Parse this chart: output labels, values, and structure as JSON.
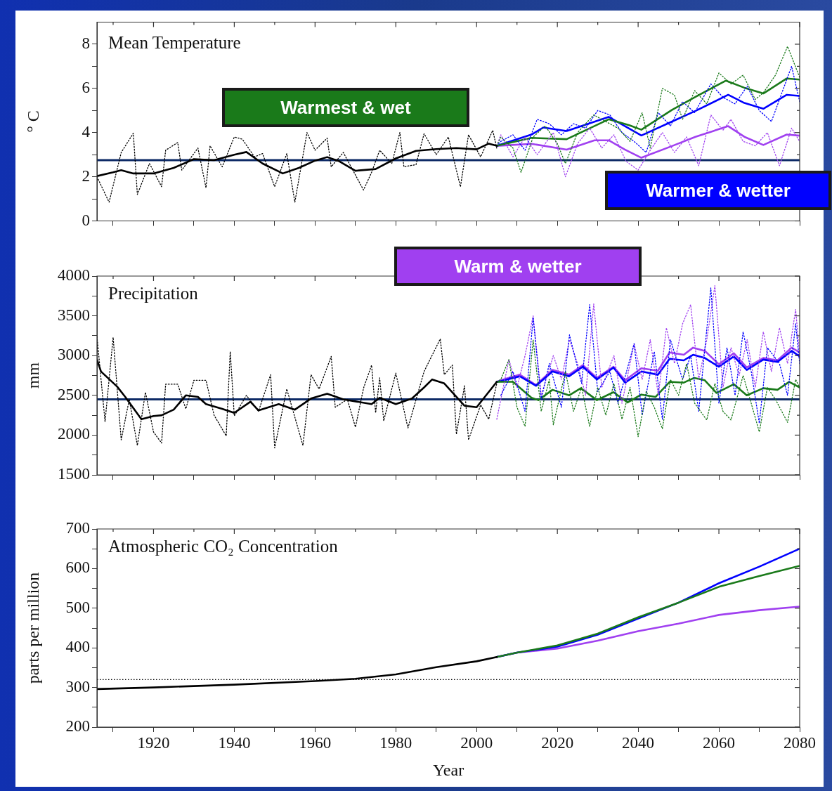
{
  "chart_data": [
    {
      "type": "line",
      "title": "Mean Temperature",
      "ylabel": "° C",
      "xlim": [
        1906,
        2080
      ],
      "xticks": [
        {
          "value": 1910,
          "label": null
        },
        1920,
        {
          "value": 1930,
          "label": null
        },
        1940,
        {
          "value": 1950,
          "label": null
        },
        1960,
        {
          "value": 1970,
          "label": null
        },
        1980,
        {
          "value": 1990,
          "label": null
        },
        2000,
        {
          "value": 2010,
          "label": null
        },
        2020,
        {
          "value": 2030,
          "label": null
        },
        2040,
        {
          "value": 2050,
          "label": null
        },
        2060,
        {
          "value": 2070,
          "label": null
        },
        2080
      ],
      "ylim": [
        0,
        9
      ],
      "yticks": [
        0,
        {
          "value": 1,
          "label": null
        },
        2,
        {
          "value": 3,
          "label": null
        },
        4,
        {
          "value": 5,
          "label": null
        },
        6,
        {
          "value": 7,
          "label": null
        },
        8
      ],
      "tick_labels": "y",
      "marker": "none",
      "ref_lines": [
        {
          "axis": "y",
          "value": 2.75,
          "color": "#0d2a66",
          "line_style": "solid"
        }
      ],
      "series": [
        {
          "color": "#000000",
          "line_style": "dotted",
          "x": [
            1906,
            1909,
            1912,
            1915,
            1916,
            1919,
            1922,
            1923,
            1926,
            1927,
            1931,
            1933,
            1934,
            1937,
            1940,
            1942,
            1945,
            1947,
            1950,
            1953,
            1955,
            1958,
            1960,
            1963,
            1964,
            1967,
            1972,
            1974,
            1976,
            1979,
            1981,
            1982,
            1985,
            1987,
            1990,
            1993,
            1996,
            1998,
            2001,
            2004,
            2005
          ],
          "values": [
            2.0,
            0.85,
            3.1,
            3.97,
            1.2,
            2.6,
            1.55,
            3.2,
            3.55,
            2.3,
            3.3,
            1.5,
            3.4,
            2.45,
            3.8,
            3.7,
            2.9,
            3.05,
            1.55,
            3.05,
            0.85,
            4.0,
            3.2,
            3.75,
            2.45,
            3.1,
            1.4,
            2.2,
            3.2,
            2.6,
            4.0,
            2.45,
            2.55,
            3.95,
            3.0,
            3.8,
            1.55,
            3.9,
            2.9,
            4.1,
            3.3
          ]
        },
        {
          "color": "#000000",
          "line_style": "solid",
          "x": [
            1906,
            1910,
            1912,
            1915,
            1920,
            1925,
            1930,
            1935,
            1940,
            1943,
            1947,
            1952,
            1956,
            1960,
            1963,
            1966,
            1970,
            1975,
            1980,
            1985,
            1990,
            1995,
            2000,
            2003,
            2005
          ],
          "values": [
            2.03,
            2.2,
            2.3,
            2.15,
            2.15,
            2.4,
            2.8,
            2.75,
            3.0,
            3.12,
            2.6,
            2.15,
            2.4,
            2.73,
            2.89,
            2.7,
            2.27,
            2.35,
            2.83,
            3.17,
            3.25,
            3.3,
            3.24,
            3.5,
            3.4
          ]
        },
        {
          "color": "#1a7a1a",
          "line_style": "dotted",
          "x": [
            2005,
            2006,
            2009,
            2011,
            2014,
            2017,
            2020,
            2022,
            2025,
            2029,
            2032,
            2035,
            2038,
            2041,
            2043,
            2046,
            2049,
            2051,
            2054,
            2057,
            2060,
            2063,
            2066,
            2069,
            2071,
            2074,
            2077,
            2080
          ],
          "values": [
            3.4,
            3.8,
            3.3,
            2.2,
            3.8,
            4.3,
            3.5,
            2.6,
            4.0,
            4.8,
            4.5,
            4.2,
            3.6,
            4.9,
            3.3,
            6.0,
            5.7,
            4.6,
            5.9,
            5.3,
            6.7,
            6.2,
            6.6,
            5.5,
            5.8,
            6.6,
            7.9,
            6.5
          ]
        },
        {
          "color": "#0000ff",
          "line_style": "dotted",
          "x": [
            2005,
            2006,
            2009,
            2012,
            2015,
            2018,
            2021,
            2024,
            2027,
            2030,
            2033,
            2036,
            2039,
            2042,
            2045,
            2048,
            2051,
            2054,
            2058,
            2061,
            2064,
            2067,
            2070,
            2073,
            2076,
            2078,
            2080
          ],
          "values": [
            3.4,
            3.6,
            3.9,
            3.2,
            4.6,
            4.4,
            3.9,
            4.4,
            4.2,
            5.0,
            4.8,
            4.0,
            3.6,
            3.1,
            4.9,
            4.3,
            5.4,
            4.9,
            6.2,
            5.6,
            5.3,
            6.1,
            5.0,
            4.5,
            6.0,
            7.0,
            5.4
          ]
        },
        {
          "color": "#a040f0",
          "line_style": "dotted",
          "x": [
            2005,
            2006,
            2009,
            2012,
            2015,
            2019,
            2022,
            2025,
            2028,
            2031,
            2034,
            2037,
            2040,
            2043,
            2046,
            2049,
            2052,
            2055,
            2058,
            2061,
            2063,
            2066,
            2069,
            2072,
            2075,
            2078,
            2080
          ],
          "values": [
            3.4,
            3.9,
            2.9,
            3.8,
            3.0,
            4.0,
            2.0,
            3.5,
            4.2,
            3.3,
            3.9,
            2.7,
            2.3,
            3.2,
            4.0,
            3.1,
            3.8,
            2.5,
            4.8,
            4.1,
            4.6,
            3.6,
            3.4,
            4.0,
            2.5,
            4.2,
            3.6
          ]
        },
        {
          "name": "Warmest & wet",
          "color": "#1a7a1a",
          "line_style": "solid",
          "x": [
            2005,
            2013.6,
            2022.3,
            2032.7,
            2037.8,
            2040.8,
            2048.4,
            2054.2,
            2061.7,
            2066.3,
            2071,
            2076.8,
            2080
          ],
          "values": [
            3.4,
            3.76,
            3.7,
            4.6,
            4.33,
            4.13,
            5.03,
            5.62,
            6.35,
            6.03,
            5.77,
            6.45,
            6.4
          ]
        },
        {
          "name": "Warmer & wetter",
          "color": "#0000ff",
          "line_style": "solid",
          "x": [
            2005,
            2013.6,
            2016.5,
            2022.3,
            2032.7,
            2040.8,
            2048.4,
            2054.2,
            2062.3,
            2066.3,
            2071,
            2076.8,
            2080
          ],
          "values": [
            3.4,
            3.91,
            4.23,
            4.07,
            4.71,
            3.87,
            4.5,
            4.98,
            5.71,
            5.34,
            5.08,
            5.71,
            5.66
          ]
        },
        {
          "name": "Warm & wetter",
          "color": "#a040f0",
          "line_style": "solid",
          "x": [
            2005,
            2013.6,
            2022.3,
            2029.2,
            2032.7,
            2036.7,
            2040.8,
            2048.4,
            2054.2,
            2062.3,
            2066.3,
            2071,
            2076.8,
            2080
          ],
          "values": [
            3.4,
            3.49,
            3.23,
            3.65,
            3.65,
            3.23,
            2.86,
            3.39,
            3.81,
            4.29,
            3.81,
            3.44,
            3.91,
            3.86
          ]
        }
      ]
    },
    {
      "type": "line",
      "title": "Precipitation",
      "ylabel": "mm",
      "xlim": [
        1906,
        2080
      ],
      "xticks": [
        {
          "value": 1910,
          "label": null
        },
        1920,
        {
          "value": 1930,
          "label": null
        },
        1940,
        {
          "value": 1950,
          "label": null
        },
        1960,
        {
          "value": 1970,
          "label": null
        },
        1980,
        {
          "value": 1990,
          "label": null
        },
        2000,
        {
          "value": 2010,
          "label": null
        },
        2020,
        {
          "value": 2030,
          "label": null
        },
        2040,
        {
          "value": 2050,
          "label": null
        },
        2060,
        {
          "value": 2070,
          "label": null
        },
        2080
      ],
      "ylim": [
        1500,
        4000
      ],
      "yticks": [
        1500,
        {
          "value": 1750,
          "label": null
        },
        2000,
        {
          "value": 2250,
          "label": null
        },
        2500,
        {
          "value": 2750,
          "label": null
        },
        3000,
        {
          "value": 3250,
          "label": null
        },
        3500,
        {
          "value": 3750,
          "label": null
        },
        4000
      ],
      "tick_labels": "y",
      "marker": "none",
      "ref_lines": [
        {
          "axis": "y",
          "value": 2450,
          "color": "#0d2a66",
          "line_style": "solid"
        }
      ],
      "series": [
        {
          "color": "#000000",
          "line_style": "dotted",
          "x": [
            1906,
            1908,
            1910,
            1912,
            1914,
            1916,
            1918,
            1920,
            1922,
            1923,
            1926,
            1928,
            1930,
            1933,
            1935,
            1938,
            1939,
            1940,
            1943,
            1946,
            1949,
            1950,
            1953,
            1957,
            1959,
            1961,
            1964,
            1965,
            1968,
            1970,
            1972,
            1974,
            1975,
            1976,
            1977,
            1980,
            1983,
            1987,
            1991,
            1992,
            1994,
            1995,
            1997,
            1998,
            2001,
            2003,
            2005
          ],
          "values": [
            3240,
            2170,
            3230,
            1940,
            2450,
            1870,
            2540,
            2040,
            1900,
            2640,
            2640,
            2330,
            2690,
            2690,
            2250,
            1990,
            3050,
            2240,
            2500,
            2300,
            2760,
            1840,
            2580,
            1870,
            2760,
            2580,
            2990,
            2350,
            2450,
            2100,
            2590,
            2880,
            2280,
            2720,
            2180,
            2780,
            2090,
            2800,
            3210,
            2760,
            2880,
            2010,
            2620,
            1940,
            2380,
            2200,
            2650
          ]
        },
        {
          "color": "#000000",
          "line_style": "solid",
          "x": [
            1906,
            1907,
            1911,
            1913,
            1917,
            1920,
            1922,
            1925,
            1928,
            1931,
            1933,
            1937,
            1940,
            1944,
            1946,
            1951,
            1955,
            1959,
            1963,
            1967,
            1974,
            1976,
            1980,
            1984,
            1987,
            1989,
            1992,
            1997,
            2000,
            2005
          ],
          "values": [
            2950,
            2800,
            2610,
            2480,
            2200,
            2240,
            2250,
            2320,
            2500,
            2480,
            2390,
            2330,
            2280,
            2420,
            2310,
            2390,
            2320,
            2460,
            2520,
            2450,
            2390,
            2470,
            2390,
            2460,
            2600,
            2700,
            2650,
            2370,
            2350,
            2670
          ]
        },
        {
          "color": "#1a7a1a",
          "line_style": "dotted",
          "x": [
            2005,
            2006,
            2008,
            2010,
            2012,
            2014,
            2016,
            2018,
            2019,
            2022,
            2024,
            2026,
            2028,
            2030,
            2032,
            2034,
            2036,
            2038,
            2040,
            2042,
            2044,
            2046,
            2048,
            2050,
            2052,
            2054,
            2057,
            2059,
            2061,
            2063,
            2066,
            2068,
            2070,
            2072,
            2074,
            2077,
            2079,
            2080
          ],
          "values": [
            2670,
            2700,
            2950,
            2350,
            2110,
            3200,
            2300,
            2700,
            2130,
            2800,
            2300,
            2600,
            2110,
            2600,
            2250,
            2650,
            2200,
            2600,
            1980,
            2550,
            2350,
            2080,
            2700,
            2500,
            2900,
            2400,
            2190,
            2650,
            2300,
            2190,
            2750,
            2400,
            2040,
            2600,
            2450,
            2160,
            2700,
            2600
          ]
        },
        {
          "color": "#0000ff",
          "line_style": "dotted",
          "x": [
            2006,
            2009,
            2012,
            2014,
            2016,
            2018,
            2021,
            2023,
            2026,
            2028,
            2030,
            2033,
            2035,
            2039,
            2041,
            2044,
            2046,
            2048,
            2051,
            2053,
            2055,
            2058,
            2060,
            2062,
            2064,
            2066,
            2068,
            2070,
            2072,
            2075,
            2077,
            2079,
            2080
          ],
          "values": [
            2500,
            2800,
            2300,
            3480,
            2450,
            2900,
            2350,
            3260,
            2650,
            3640,
            2550,
            2800,
            2400,
            3150,
            2250,
            3050,
            2200,
            3200,
            2700,
            3000,
            2300,
            3850,
            2400,
            3100,
            2500,
            3300,
            2800,
            2150,
            3100,
            2900,
            2500,
            3400,
            2900
          ]
        },
        {
          "color": "#a040f0",
          "line_style": "dotted",
          "x": [
            2005,
            2008,
            2010,
            2012,
            2014,
            2016,
            2019,
            2021,
            2023,
            2025,
            2027,
            2029,
            2031,
            2034,
            2036,
            2039,
            2041,
            2043,
            2045,
            2047,
            2049,
            2051,
            2053,
            2055,
            2057,
            2059,
            2061,
            2063,
            2065,
            2067,
            2069,
            2071,
            2073,
            2075,
            2077,
            2079,
            2080
          ],
          "values": [
            2200,
            2950,
            2600,
            3000,
            3500,
            2500,
            3000,
            2700,
            3200,
            2900,
            2500,
            3650,
            2600,
            3000,
            2400,
            3150,
            2700,
            3200,
            2500,
            3350,
            2900,
            3400,
            3640,
            2700,
            3200,
            3880,
            2600,
            3100,
            2750,
            3200,
            2600,
            3300,
            2800,
            3350,
            2900,
            3580,
            3000
          ]
        },
        {
          "color": "#1a7a1a",
          "line_style": "solid",
          "x": [
            2005,
            2009,
            2013.6,
            2015.3,
            2018.8,
            2022.9,
            2025.8,
            2029.8,
            2033.9,
            2037.4,
            2040.8,
            2044.3,
            2047.8,
            2051.3,
            2053.9,
            2056.5,
            2059.4,
            2063.7,
            2066.9,
            2071,
            2074.5,
            2077.4,
            2080
          ],
          "values": [
            2670,
            2670,
            2470,
            2440,
            2570,
            2500,
            2590,
            2440,
            2540,
            2410,
            2510,
            2480,
            2670,
            2660,
            2720,
            2690,
            2530,
            2640,
            2500,
            2590,
            2570,
            2670,
            2600
          ]
        },
        {
          "color": "#0000ff",
          "line_style": "solid",
          "x": [
            2005,
            2006,
            2010.7,
            2014.7,
            2018.8,
            2022.9,
            2026.3,
            2029.8,
            2033.9,
            2036.8,
            2040.8,
            2044.9,
            2047.8,
            2051.3,
            2053.6,
            2056.5,
            2060,
            2063.7,
            2066.9,
            2071,
            2074.5,
            2078,
            2080
          ],
          "values": [
            2670,
            2680,
            2740,
            2620,
            2800,
            2740,
            2860,
            2700,
            2850,
            2660,
            2800,
            2760,
            2960,
            2940,
            3010,
            2970,
            2860,
            2990,
            2820,
            2950,
            2920,
            3060,
            2990
          ]
        },
        {
          "color": "#a040f0",
          "line_style": "solid",
          "x": [
            2005,
            2006,
            2010.7,
            2014.7,
            2018.8,
            2022.9,
            2026.3,
            2029.8,
            2033.9,
            2036.8,
            2040.8,
            2044.9,
            2047.8,
            2051.3,
            2053.6,
            2056.5,
            2060,
            2063.7,
            2066.9,
            2071,
            2074.5,
            2078,
            2080
          ],
          "values": [
            2670,
            2690,
            2760,
            2630,
            2820,
            2760,
            2880,
            2720,
            2860,
            2690,
            2840,
            2810,
            3040,
            3010,
            3100,
            3060,
            2890,
            3030,
            2850,
            2970,
            2940,
            3100,
            3040
          ]
        }
      ]
    },
    {
      "type": "line",
      "title": "Atmospheric CO₂ Concentration",
      "ylabel": "parts per million",
      "xlabel": "Year",
      "xlim": [
        1906,
        2080
      ],
      "xticks": [
        {
          "value": 1910,
          "label": null
        },
        1920,
        {
          "value": 1930,
          "label": null
        },
        1940,
        {
          "value": 1950,
          "label": null
        },
        1960,
        {
          "value": 1970,
          "label": null
        },
        1980,
        {
          "value": 1990,
          "label": null
        },
        2000,
        {
          "value": 2010,
          "label": null
        },
        2020,
        {
          "value": 2030,
          "label": null
        },
        2040,
        {
          "value": 2050,
          "label": null
        },
        2060,
        {
          "value": 2070,
          "label": null
        },
        2080
      ],
      "ylim": [
        200,
        700
      ],
      "yticks": [
        200,
        {
          "value": 250,
          "label": null
        },
        300,
        {
          "value": 350,
          "label": null
        },
        400,
        {
          "value": 450,
          "label": null
        },
        500,
        {
          "value": 550,
          "label": null
        },
        600,
        {
          "value": 650,
          "label": null
        },
        700
      ],
      "marker": "none",
      "ref_lines": [
        {
          "axis": "y",
          "value": 320,
          "color": "#000000",
          "line_style": "dotted"
        }
      ],
      "series": [
        {
          "color": "#000000",
          "line_style": "solid",
          "x": [
            1906,
            1920,
            1940,
            1960,
            1970,
            1980,
            1990,
            2000,
            2005
          ],
          "values": [
            296,
            300,
            307,
            316,
            322,
            333,
            351,
            366,
            377
          ]
        },
        {
          "color": "#1a7a1a",
          "line_style": "solid",
          "x": [
            2005,
            2010,
            2020,
            2030,
            2040,
            2050,
            2060,
            2070,
            2080
          ],
          "values": [
            377,
            388,
            406,
            436,
            477,
            514,
            554,
            581,
            607
          ]
        },
        {
          "color": "#0000ff",
          "line_style": "solid",
          "x": [
            2005,
            2010,
            2020,
            2030,
            2040,
            2050,
            2060,
            2070,
            2080
          ],
          "values": [
            377,
            388,
            403,
            433,
            474,
            514,
            563,
            605,
            650
          ]
        },
        {
          "color": "#a040f0",
          "line_style": "solid",
          "x": [
            2005,
            2010,
            2020,
            2030,
            2040,
            2050,
            2060,
            2070,
            2080
          ],
          "values": [
            377,
            388,
            398,
            418,
            442,
            461,
            483,
            495,
            504
          ]
        }
      ]
    }
  ]
}
